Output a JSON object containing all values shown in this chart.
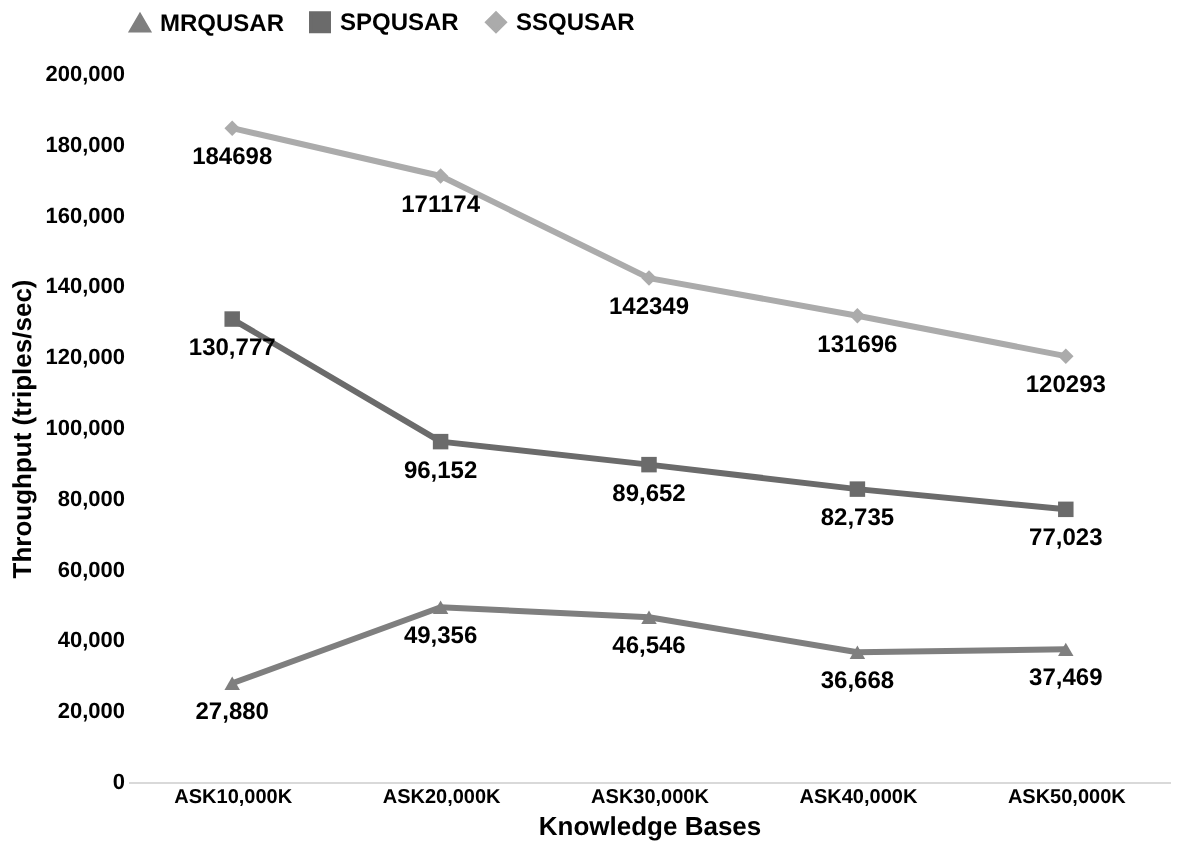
{
  "chart_data": {
    "type": "line",
    "xlabel": "Knowledge Bases",
    "ylabel": "Throughput (triples/sec)",
    "categories": [
      "ASK10,000K",
      "ASK20,000K",
      "ASK30,000K",
      "ASK40,000K",
      "ASK50,000K"
    ],
    "series": [
      {
        "name": "MRQUSAR",
        "color": "#7f7f7f",
        "marker": "triangle",
        "values": [
          27880,
          49356,
          46546,
          36668,
          37469
        ],
        "value_labels": [
          "27,880",
          "49,356",
          "46,546",
          "36,668",
          "37,469"
        ]
      },
      {
        "name": "SPQUSAR",
        "color": "#6b6b6b",
        "marker": "square",
        "values": [
          130777,
          96152,
          89652,
          82735,
          77023
        ],
        "value_labels": [
          "130,777",
          "96,152",
          "89,652",
          "82,735",
          "77,023"
        ]
      },
      {
        "name": "SSQUSAR",
        "color": "#ababab",
        "marker": "diamond",
        "values": [
          184698,
          171174,
          142349,
          131696,
          120293
        ],
        "value_labels": [
          "184698",
          "171174",
          "142349",
          "131696",
          "120293"
        ]
      }
    ],
    "ylim": [
      0,
      200000
    ],
    "yticks": [
      0,
      {
        "value": 20000,
        "label": "20,000"
      },
      {
        "value": 40000,
        "label": "40,000"
      },
      {
        "value": 60000,
        "label": "60,000"
      },
      {
        "value": 80000,
        "label": "80,000"
      },
      {
        "value": 100000,
        "label": "100,000"
      },
      {
        "value": 120000,
        "label": "120,000"
      },
      {
        "value": 140000,
        "label": "140,000"
      },
      {
        "value": 160000,
        "label": "160,000"
      },
      {
        "value": 180000,
        "label": "180,000"
      },
      {
        "value": 200000,
        "label": "200,000"
      }
    ],
    "grid": false,
    "legend": "top",
    "line_style": "solid"
  }
}
